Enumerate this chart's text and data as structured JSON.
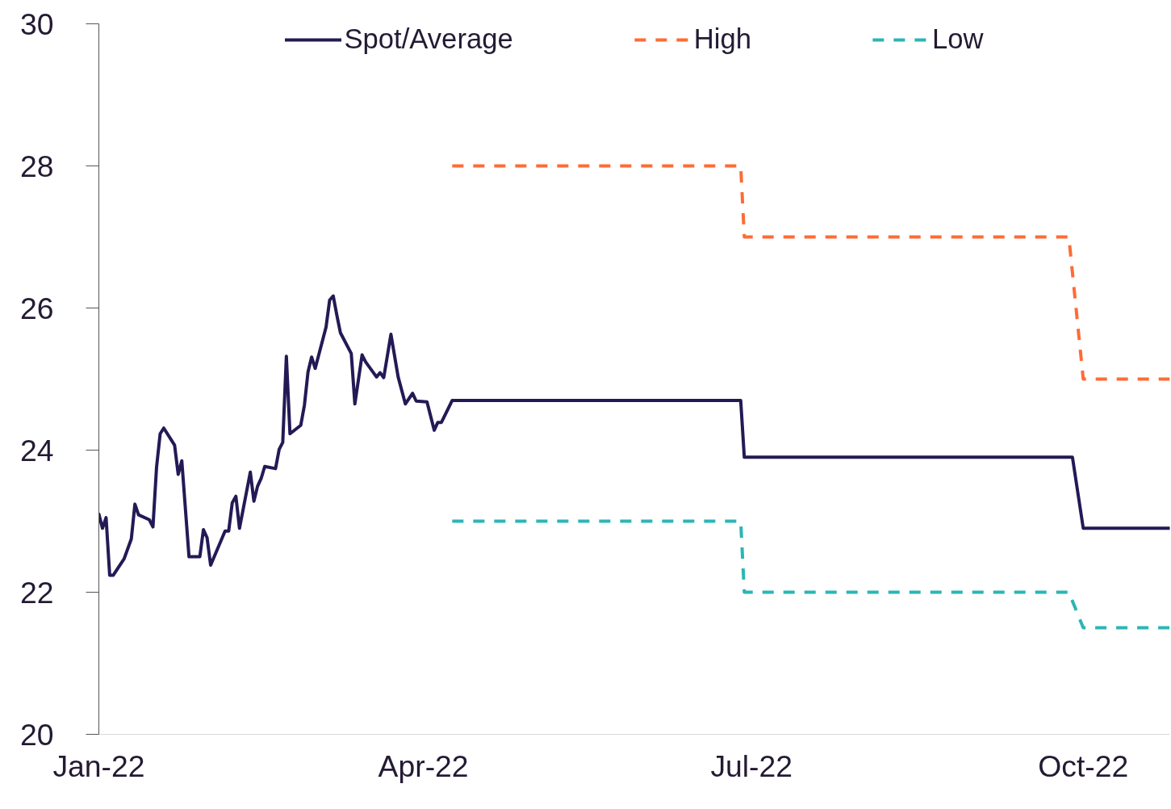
{
  "chart_data": {
    "type": "line",
    "xlim": [
      "2022-01-01",
      "2022-10-25"
    ],
    "xticks": [
      {
        "value": "2022-01-01",
        "label": "Jan-22"
      },
      {
        "value": "2022-04-01",
        "label": "Apr-22"
      },
      {
        "value": "2022-07-01",
        "label": "Jul-22"
      },
      {
        "value": "2022-10-01",
        "label": "Oct-22"
      }
    ],
    "ylim": [
      20,
      30
    ],
    "yticks": [
      20,
      22,
      24,
      26,
      28,
      30
    ],
    "grid": false,
    "legend": "top",
    "marker": "none",
    "series": [
      {
        "name": "Spot/Average",
        "color": "#231a55",
        "line_style": "solid",
        "x": [
          "2022-01-01",
          "2022-01-02",
          "2022-01-03",
          "2022-01-04",
          "2022-01-05",
          "2022-01-08",
          "2022-01-10",
          "2022-01-11",
          "2022-01-12",
          "2022-01-15",
          "2022-01-16",
          "2022-01-17",
          "2022-01-18",
          "2022-01-19",
          "2022-01-22",
          "2022-01-23",
          "2022-01-24",
          "2022-01-26",
          "2022-01-29",
          "2022-01-30",
          "2022-01-31",
          "2022-02-01",
          "2022-02-05",
          "2022-02-06",
          "2022-02-07",
          "2022-02-08",
          "2022-02-09",
          "2022-02-12",
          "2022-02-13",
          "2022-02-14",
          "2022-02-15",
          "2022-02-16",
          "2022-02-19",
          "2022-02-20",
          "2022-02-21",
          "2022-02-22",
          "2022-02-23",
          "2022-02-26",
          "2022-02-27",
          "2022-02-28",
          "2022-03-01",
          "2022-03-02",
          "2022-03-05",
          "2022-03-06",
          "2022-03-07",
          "2022-03-08",
          "2022-03-09",
          "2022-03-12",
          "2022-03-13",
          "2022-03-15",
          "2022-03-16",
          "2022-03-19",
          "2022-03-20",
          "2022-03-21",
          "2022-03-23",
          "2022-03-25",
          "2022-03-27",
          "2022-03-29",
          "2022-03-30",
          "2022-04-02",
          "2022-04-04",
          "2022-04-05",
          "2022-04-06",
          "2022-04-09",
          "2022-06-28",
          "2022-06-29",
          "2022-09-28",
          "2022-10-01",
          "2022-10-25"
        ],
        "values": [
          23.1,
          22.9,
          23.05,
          22.24,
          22.24,
          22.47,
          22.75,
          23.24,
          23.09,
          23.02,
          22.92,
          23.76,
          24.23,
          24.31,
          24.07,
          23.66,
          23.85,
          22.5,
          22.5,
          22.88,
          22.77,
          22.38,
          22.86,
          22.86,
          23.26,
          23.35,
          22.9,
          23.69,
          23.28,
          23.49,
          23.6,
          23.77,
          23.74,
          24.01,
          24.11,
          25.32,
          24.23,
          24.35,
          24.63,
          25.1,
          25.31,
          25.15,
          25.73,
          26.11,
          26.17,
          25.9,
          25.65,
          25.36,
          24.65,
          25.34,
          25.24,
          25.03,
          25.09,
          25.02,
          25.63,
          25.03,
          24.65,
          24.8,
          24.69,
          24.68,
          24.28,
          24.39,
          24.39,
          24.7,
          24.7,
          23.9,
          23.9,
          22.9,
          22.9
        ]
      },
      {
        "name": "High",
        "color": "#ff6b35",
        "line_style": "dashed",
        "x": [
          "2022-04-09",
          "2022-06-28",
          "2022-06-29",
          "2022-09-27",
          "2022-10-01",
          "2022-10-25"
        ],
        "values": [
          28,
          28,
          27,
          27,
          25,
          25
        ]
      },
      {
        "name": "Low",
        "color": "#2cb5b5",
        "line_style": "dashed",
        "x": [
          "2022-04-09",
          "2022-06-28",
          "2022-06-29",
          "2022-09-27",
          "2022-10-01",
          "2022-10-25"
        ],
        "values": [
          23,
          23,
          22,
          22,
          21.5,
          21.5
        ]
      }
    ]
  }
}
